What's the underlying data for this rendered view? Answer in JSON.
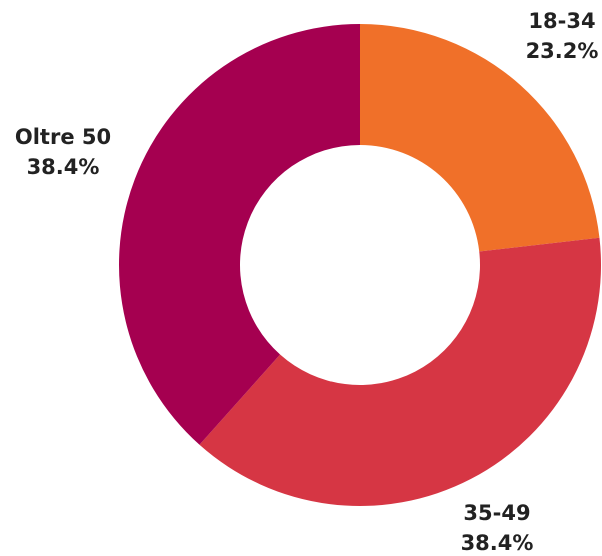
{
  "chart_data": {
    "type": "pie",
    "categories": [
      "18-34",
      "35-49",
      "Oltre 50"
    ],
    "values": [
      23.2,
      38.4,
      38.4
    ],
    "value_labels": [
      "23.2%",
      "38.4%",
      "38.4%"
    ],
    "colors": [
      "#f07029",
      "#d63644",
      "#a50050"
    ],
    "donut": true
  }
}
